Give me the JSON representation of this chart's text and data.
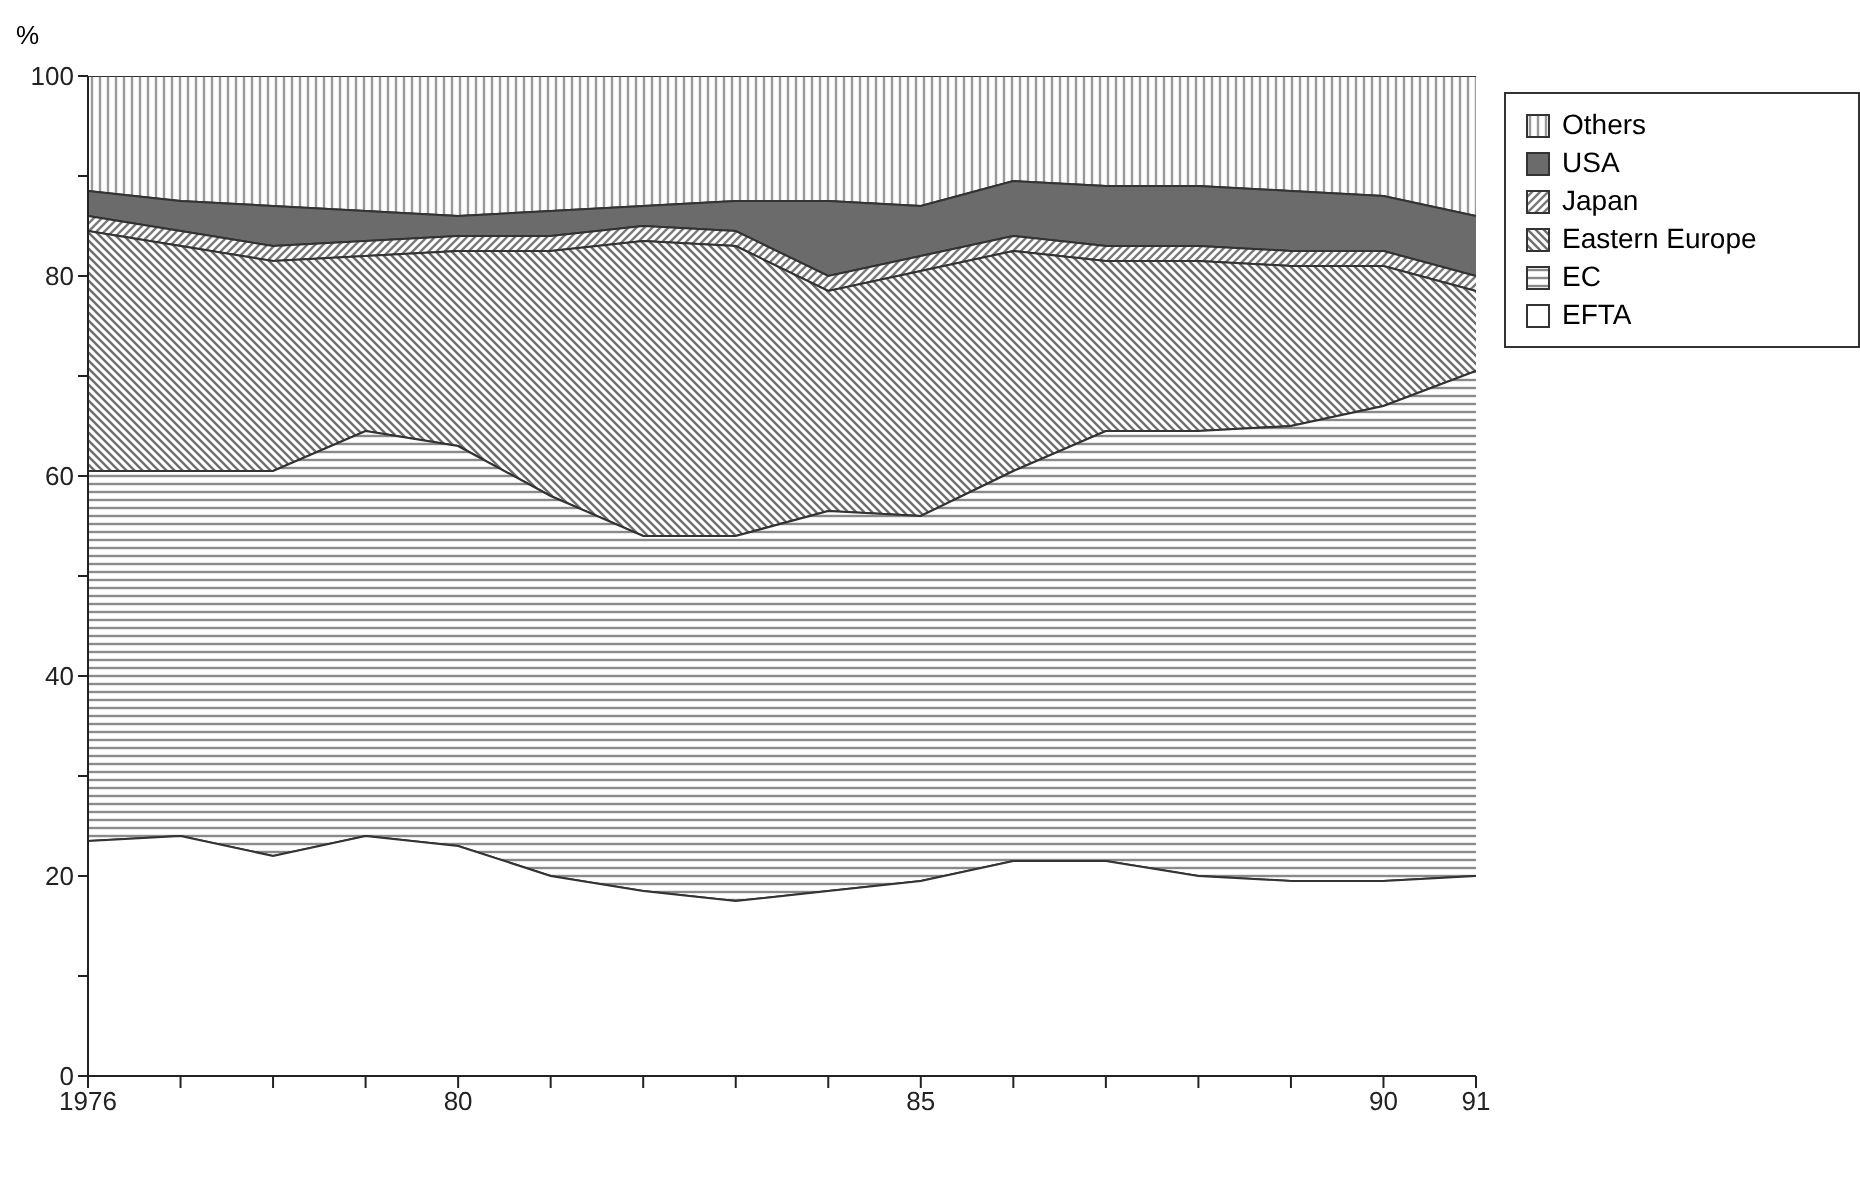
{
  "chart_data": {
    "type": "area",
    "stacked": true,
    "ylabel": "%",
    "x": [
      1976,
      1977,
      1978,
      1979,
      1980,
      1981,
      1982,
      1983,
      1984,
      1985,
      1986,
      1987,
      1988,
      1989,
      1990,
      1991
    ],
    "xlim": [
      1976,
      1991
    ],
    "xticks": [
      {
        "value": 1976,
        "label": "1976"
      },
      {
        "value": 1977,
        "label": null
      },
      {
        "value": 1978,
        "label": null
      },
      {
        "value": 1979,
        "label": null
      },
      {
        "value": 1980,
        "label": "80"
      },
      {
        "value": 1981,
        "label": null
      },
      {
        "value": 1982,
        "label": null
      },
      {
        "value": 1983,
        "label": null
      },
      {
        "value": 1984,
        "label": null
      },
      {
        "value": 1985,
        "label": "85"
      },
      {
        "value": 1986,
        "label": null
      },
      {
        "value": 1987,
        "label": null
      },
      {
        "value": 1988,
        "label": null
      },
      {
        "value": 1989,
        "label": null
      },
      {
        "value": 1990,
        "label": "90"
      },
      {
        "value": 1991,
        "label": "91"
      }
    ],
    "ylim": [
      0,
      100
    ],
    "yticks": [
      0,
      {
        "value": 10,
        "label": null
      },
      20,
      {
        "value": 30,
        "label": null
      },
      40,
      {
        "value": 50,
        "label": null
      },
      60,
      {
        "value": 70,
        "label": null
      },
      80,
      {
        "value": 90,
        "label": null
      },
      100
    ],
    "grid": false,
    "legend": "right",
    "series": [
      {
        "name": "EFTA",
        "color": "#ffffff",
        "values": [
          23.5,
          24,
          22,
          24,
          23,
          20,
          18.5,
          17.5,
          18.5,
          19.5,
          21.5,
          21.5,
          20,
          19.5,
          19.5,
          20
        ]
      },
      {
        "name": "EC",
        "color": "#8a8a8a",
        "values": [
          37,
          36.5,
          38.5,
          40.5,
          40,
          38,
          35.5,
          36.5,
          38,
          36.5,
          39,
          43,
          44.5,
          45.5,
          47.5,
          50.5
        ]
      },
      {
        "name": "Eastern Europe",
        "color": "#6e6e6e",
        "values": [
          24,
          22.5,
          21,
          17.5,
          19.5,
          24.5,
          29.5,
          29,
          22,
          24.5,
          22,
          17,
          17,
          16,
          14,
          8
        ]
      },
      {
        "name": "Japan",
        "color": "#7a7a7a",
        "values": [
          1.5,
          1.5,
          1.5,
          1.5,
          1.5,
          1.5,
          1.5,
          1.5,
          1.5,
          1.5,
          1.5,
          1.5,
          1.5,
          1.5,
          1.5,
          1.5
        ]
      },
      {
        "name": "USA",
        "color": "#6b6b6b",
        "values": [
          2.5,
          3,
          4,
          3,
          2,
          2.5,
          2,
          3,
          7.5,
          5,
          5.5,
          6,
          6,
          6,
          5.5,
          6
        ]
      },
      {
        "name": "Others",
        "color": "#9a9a9a",
        "values": [
          11.5,
          12.5,
          13,
          13.5,
          14,
          13.5,
          13,
          12.5,
          12.5,
          13,
          10.5,
          11,
          11,
          11.5,
          12,
          14
        ]
      }
    ]
  }
}
